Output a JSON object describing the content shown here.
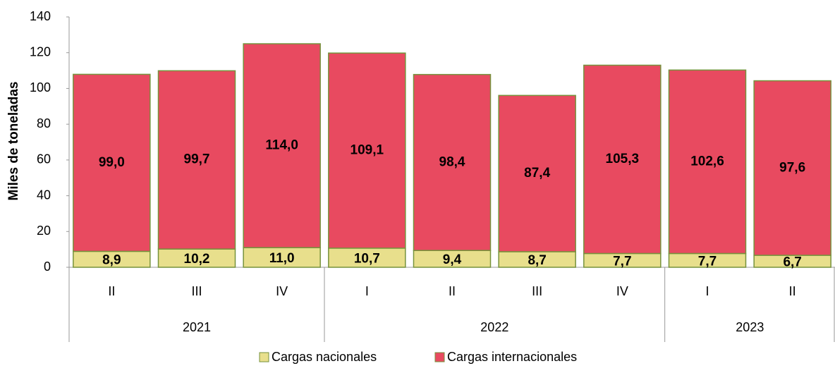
{
  "chart_data": {
    "type": "stacked_bar",
    "y_label": "Miles de toneladas",
    "categories": [
      "II",
      "III",
      "IV",
      "I",
      "II",
      "III",
      "IV",
      "I",
      "II"
    ],
    "groups": [
      {
        "label": "2021",
        "size": 3
      },
      {
        "label": "2022",
        "size": 4
      },
      {
        "label": "2023",
        "size": 2
      }
    ],
    "series": [
      {
        "name": "Cargas nacionales",
        "color": "#e8df8c",
        "values": [
          8.9,
          10.2,
          11.0,
          10.7,
          9.4,
          8.7,
          7.7,
          7.7,
          6.7
        ],
        "value_labels": [
          "8,9",
          "10,2",
          "11,0",
          "10,7",
          "9,4",
          "8,7",
          "7,7",
          "7,7",
          "6,7"
        ]
      },
      {
        "name": "Cargas internacionales",
        "color": "#e84a60",
        "values": [
          99.0,
          99.7,
          114.0,
          109.1,
          98.4,
          87.4,
          105.3,
          102.6,
          97.6
        ],
        "value_labels": [
          "99,0",
          "99,7",
          "114,0",
          "109,1",
          "98,4",
          "87,4",
          "105,3",
          "102,6",
          "97,6"
        ]
      }
    ],
    "border_color": "#76923c",
    "ylim": [
      0,
      140
    ],
    "yticks": [
      0,
      20,
      40,
      60,
      80,
      100,
      120,
      140
    ],
    "grid": false,
    "legend": "bottom"
  }
}
